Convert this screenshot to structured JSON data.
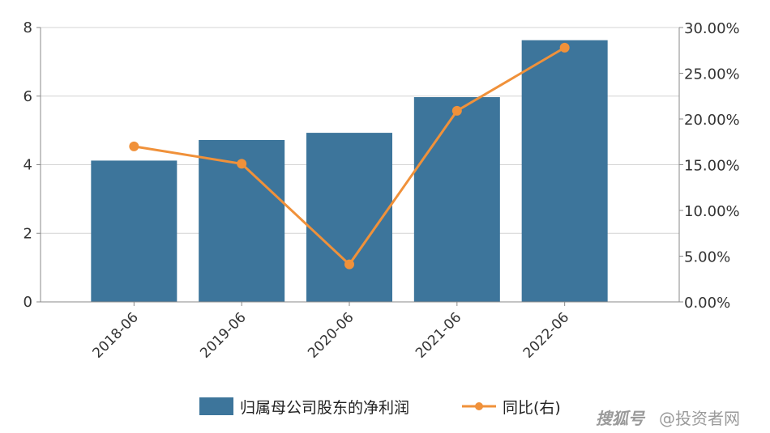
{
  "chart_data": {
    "type": "bar+line",
    "categories": [
      "2018-06",
      "2019-06",
      "2020-06",
      "2021-06",
      "2022-06"
    ],
    "series": [
      {
        "name": "归属母公司股东的净利润",
        "type": "bar",
        "axis": "left",
        "values": [
          4.12,
          4.72,
          4.93,
          5.97,
          7.63
        ],
        "color": "#3d759b"
      },
      {
        "name": "同比(右)",
        "type": "line",
        "axis": "right",
        "values": [
          17.0,
          15.1,
          4.1,
          20.9,
          27.8
        ],
        "color": "#f0913a"
      }
    ],
    "y_left": {
      "ticks": [
        "0",
        "2",
        "4",
        "6",
        "8"
      ],
      "ylim": [
        0,
        8
      ]
    },
    "y_right": {
      "ticks": [
        "0.00%",
        "5.00%",
        "10.00%",
        "15.00%",
        "20.00%",
        "25.00%",
        "30.00%"
      ],
      "ylim": [
        0,
        30
      ]
    },
    "grid": true,
    "legend_position": "bottom"
  },
  "watermark": {
    "brand": "搜狐号",
    "text": "@投资者网"
  }
}
